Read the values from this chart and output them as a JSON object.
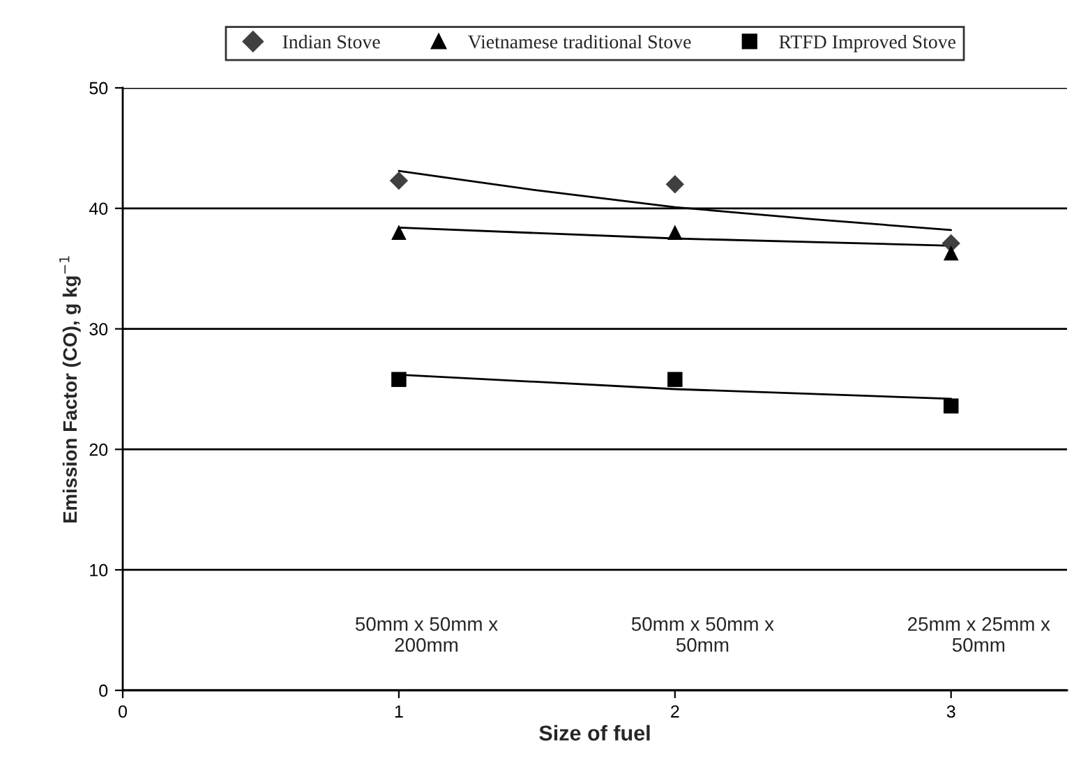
{
  "chart_data": {
    "type": "scatter",
    "xlabel": "Size of fuel",
    "ylabel": "Emission Factor (CO), g kg$^{−1}$",
    "xlim": [
      0,
      3.42
    ],
    "xticks": [
      0,
      1,
      2,
      3
    ],
    "ylim": [
      0,
      50
    ],
    "yticks": [
      0,
      10,
      20,
      30,
      40,
      50
    ],
    "grid": "y",
    "legend": "top",
    "series": [
      {
        "name": "Indian Stove",
        "color": "#404040",
        "marker": "diamond",
        "x": [
          1,
          2,
          3
        ],
        "values": [
          42.3,
          42.0,
          37.1
        ]
      },
      {
        "name": "Vietnamese traditional Stove",
        "color": "#000000",
        "marker": "triangle",
        "x": [
          1,
          2,
          3
        ],
        "values": [
          38.0,
          38.0,
          36.3
        ]
      },
      {
        "name": "RTFD Improved Stove",
        "color": "#000000",
        "marker": "square",
        "x": [
          1,
          2,
          3
        ],
        "values": [
          25.8,
          25.8,
          23.6
        ]
      },
      {
        "type": "line",
        "color": "#000000",
        "marker": "none",
        "x": [
          1,
          1.5,
          2,
          2.5,
          3
        ],
        "values": [
          43.1,
          41.5,
          40.1,
          39.1,
          38.2
        ]
      },
      {
        "type": "line",
        "color": "#000000",
        "marker": "none",
        "x": [
          1,
          2,
          3
        ],
        "values": [
          38.4,
          37.5,
          36.9
        ]
      },
      {
        "type": "line",
        "color": "#000000",
        "marker": "none",
        "x": [
          1,
          2,
          3
        ],
        "values": [
          26.2,
          25.0,
          24.2
        ]
      }
    ],
    "annotations": [
      "50mm x 50mm x\n200mm",
      "50mm x 50mm x\n50mm",
      "25mm x 25mm x\n50mm"
    ]
  }
}
